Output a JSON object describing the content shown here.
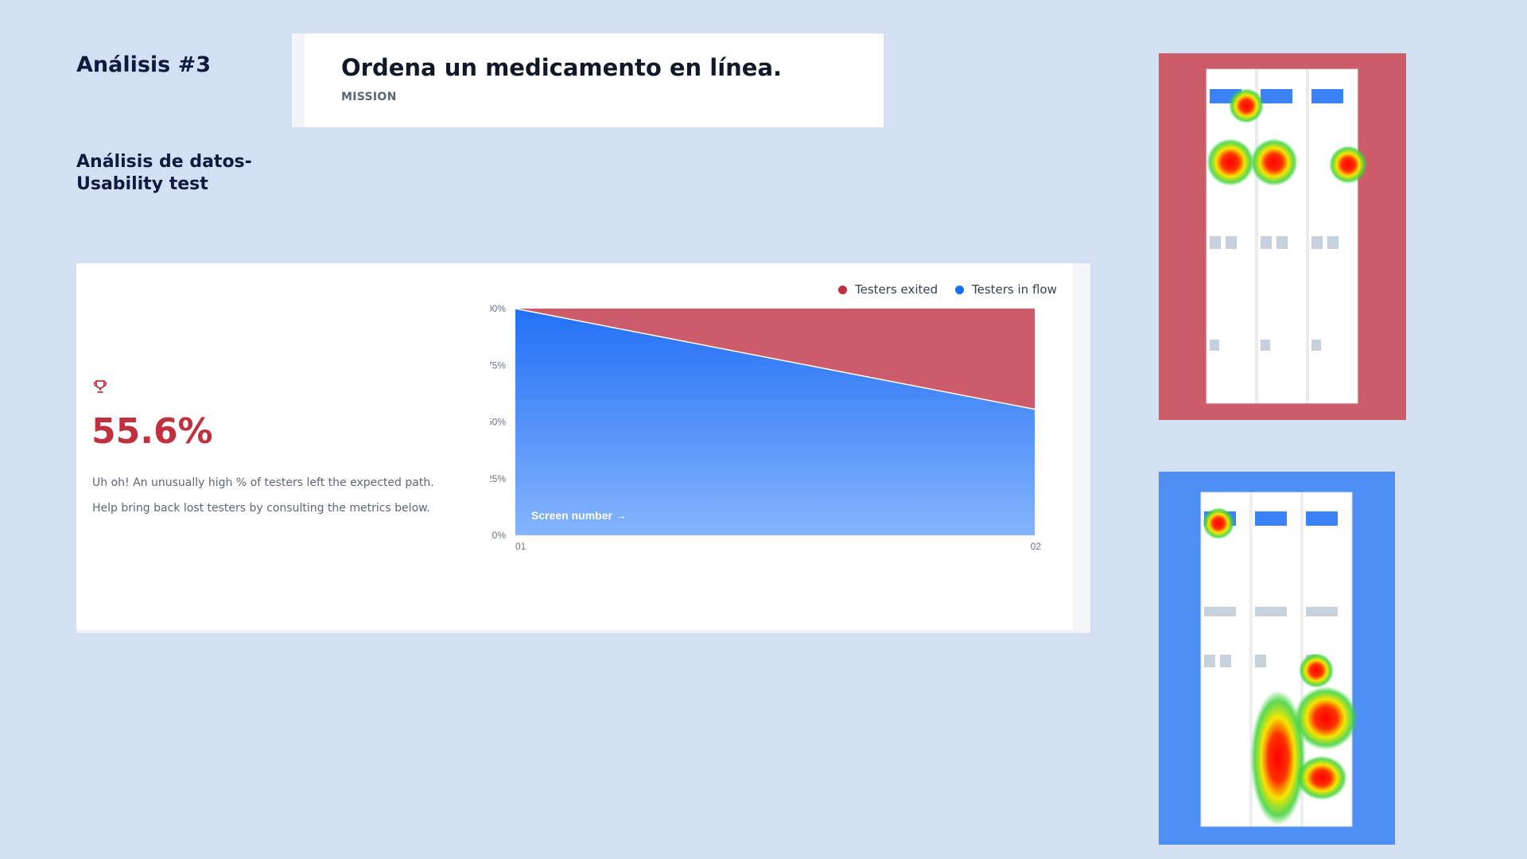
{
  "page": {
    "title": "Análisis #3",
    "subtitle_line1": "Análisis de datos-",
    "subtitle_line2": "Usability test"
  },
  "mission": {
    "title": "Ordena un medicamento en línea.",
    "label": "MISSION"
  },
  "summary": {
    "icon": "trophy-icon",
    "metric": "55.6%",
    "line1": "Uh oh! An unusually high % of testers left the expected path.",
    "line2": "Help bring back lost testers by consulting the metrics below."
  },
  "legend": {
    "exited": "Testers exited",
    "in_flow": "Testers in flow"
  },
  "colors": {
    "exited": "#cd5c6b",
    "in_flow": "#2b7cf6",
    "metric": "#c0313f"
  },
  "chart_data": {
    "type": "area",
    "categories": [
      "01",
      "02"
    ],
    "series": [
      {
        "name": "Testers in flow",
        "values": [
          100,
          55.6
        ]
      },
      {
        "name": "Testers exited",
        "values": [
          0,
          44.4
        ]
      }
    ],
    "ylim": [
      0,
      100
    ],
    "yticks": [
      "100%",
      "75%",
      "50%",
      "25%",
      "0%"
    ],
    "ytick_values": [
      100,
      75,
      50,
      25,
      0
    ],
    "xlabel": "Screen number →",
    "stacked": true
  }
}
